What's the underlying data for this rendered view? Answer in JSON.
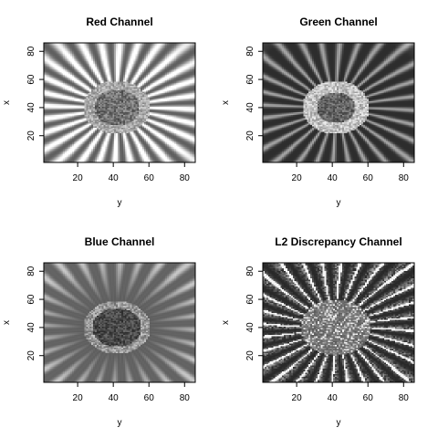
{
  "figure": {
    "layout": "2x2 grid of image plots",
    "colormap": "grayscale"
  },
  "chart_data": [
    {
      "type": "heatmap",
      "title": "Red Channel",
      "xlabel": "y",
      "ylabel": "x",
      "xlim": [
        1,
        86
      ],
      "ylim": [
        1,
        86
      ],
      "xticks": [
        20,
        40,
        60,
        80
      ],
      "yticks": [
        20,
        40,
        60,
        80
      ],
      "tone": "bright petals on mid-gray background, dark textured center",
      "center": [
        42,
        40
      ]
    },
    {
      "type": "heatmap",
      "title": "Green Channel",
      "xlabel": "y",
      "ylabel": "x",
      "xlim": [
        1,
        86
      ],
      "ylim": [
        1,
        86
      ],
      "xticks": [
        20,
        40,
        60,
        80
      ],
      "yticks": [
        20,
        40,
        60,
        80
      ],
      "tone": "dark petals, light background corners, light textured center ring",
      "center": [
        42,
        40
      ]
    },
    {
      "type": "heatmap",
      "title": "Blue Channel",
      "xlabel": "y",
      "ylabel": "x",
      "xlim": [
        1,
        86
      ],
      "ylim": [
        1,
        86
      ],
      "xticks": [
        20,
        40,
        60,
        80
      ],
      "yticks": [
        20,
        40,
        60,
        80
      ],
      "tone": "medium petals, dark center, light petal tips",
      "center": [
        42,
        40
      ]
    },
    {
      "type": "heatmap",
      "title": "L2 Discrepancy Channel",
      "xlabel": "y",
      "ylabel": "x",
      "xlim": [
        1,
        86
      ],
      "ylim": [
        1,
        86
      ],
      "xticks": [
        20,
        40,
        60,
        80
      ],
      "yticks": [
        20,
        40,
        60,
        80
      ],
      "tone": "high-contrast noisy petals with white edges, speckled center",
      "center": [
        42,
        40
      ]
    }
  ]
}
